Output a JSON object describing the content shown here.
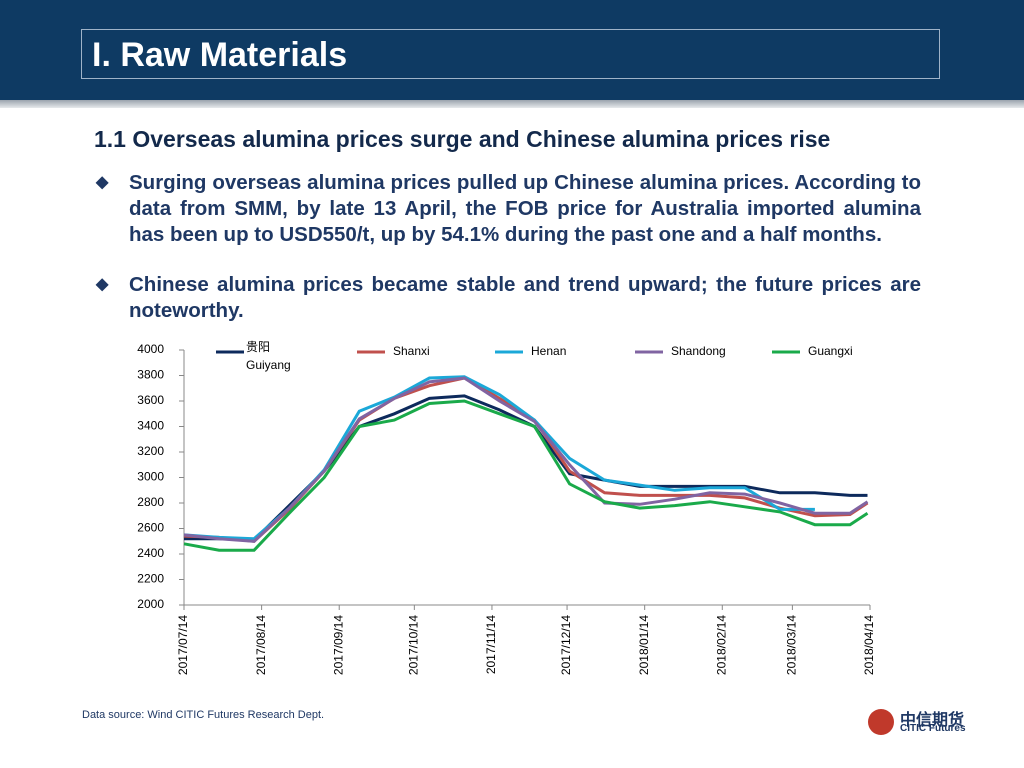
{
  "header": {
    "title": "I. Raw Materials"
  },
  "section_title": "1.1  Overseas alumina prices surge and Chinese alumina prices rise",
  "bullets": [
    "Surging overseas alumina prices pulled up Chinese alumina prices. According to data from SMM, by late 13 April, the FOB price for Australia imported alumina has been up to USD550/t, up by 54.1% during the past one and a half months.",
    "Chinese alumina prices became stable and trend upward; the future prices are noteworthy."
  ],
  "footer": {
    "source": "Data source: Wind   CITIC Futures Research Dept.",
    "logo_zh": "中信期货",
    "logo_en": "CITIC Futures"
  },
  "chart_data": {
    "type": "line",
    "x": [
      "2017/07/14",
      "2017/07/28",
      "2017/08/11",
      "2017/08/25",
      "2017/09/08",
      "2017/09/22",
      "2017/10/06",
      "2017/10/20",
      "2017/11/03",
      "2017/11/17",
      "2017/12/01",
      "2017/12/15",
      "2017/12/29",
      "2018/01/12",
      "2018/01/26",
      "2018/02/09",
      "2018/02/23",
      "2018/03/09",
      "2018/03/23",
      "2018/04/06",
      "2018/04/13"
    ],
    "xlim": [
      "2017/07/14",
      "2018/04/14"
    ],
    "xticks": [
      "2017/07/14",
      "2017/08/14",
      "2017/09/14",
      "2017/10/14",
      "2017/11/14",
      "2017/12/14",
      "2018/01/14",
      "2018/02/14",
      "2018/03/14",
      "2018/04/14"
    ],
    "ylim": [
      2000,
      4000
    ],
    "yticks": [
      2000,
      2200,
      2400,
      2600,
      2800,
      3000,
      3200,
      3400,
      3600,
      3800,
      4000
    ],
    "legend_zh": "贵阳",
    "series": [
      {
        "name": "Guiyang",
        "color": "#0d2a5c",
        "values": [
          2520,
          2520,
          2510,
          2780,
          3050,
          3400,
          3500,
          3620,
          3640,
          3530,
          3400,
          3030,
          2980,
          2930,
          2930,
          2930,
          2930,
          2880,
          2880,
          2860,
          2860
        ]
      },
      {
        "name": "Shanxi",
        "color": "#c0504d",
        "values": [
          2540,
          2530,
          2500,
          2750,
          3050,
          3450,
          3620,
          3720,
          3780,
          3620,
          3450,
          3050,
          2880,
          2860,
          2860,
          2860,
          2840,
          2760,
          2700,
          2710,
          2800
        ]
      },
      {
        "name": "Henan",
        "color": "#1ba8d8",
        "values": [
          2550,
          2530,
          2520,
          2760,
          3060,
          3520,
          3630,
          3780,
          3790,
          3650,
          3450,
          3150,
          2980,
          2940,
          2900,
          2920,
          2920,
          2750,
          2750,
          null,
          null
        ]
      },
      {
        "name": "Shandong",
        "color": "#8064a2",
        "values": [
          2550,
          2520,
          2500,
          2760,
          3050,
          3460,
          3620,
          3750,
          3780,
          3600,
          3440,
          3100,
          2800,
          2790,
          2830,
          2880,
          2870,
          2800,
          2720,
          2720,
          2810
        ]
      },
      {
        "name": "Guangxi",
        "color": "#1aaa4a",
        "values": [
          2480,
          2430,
          2430,
          2720,
          3000,
          3400,
          3450,
          3580,
          3600,
          3500,
          3400,
          2950,
          2810,
          2760,
          2780,
          2810,
          2770,
          2730,
          2630,
          2630,
          2720
        ]
      }
    ]
  }
}
